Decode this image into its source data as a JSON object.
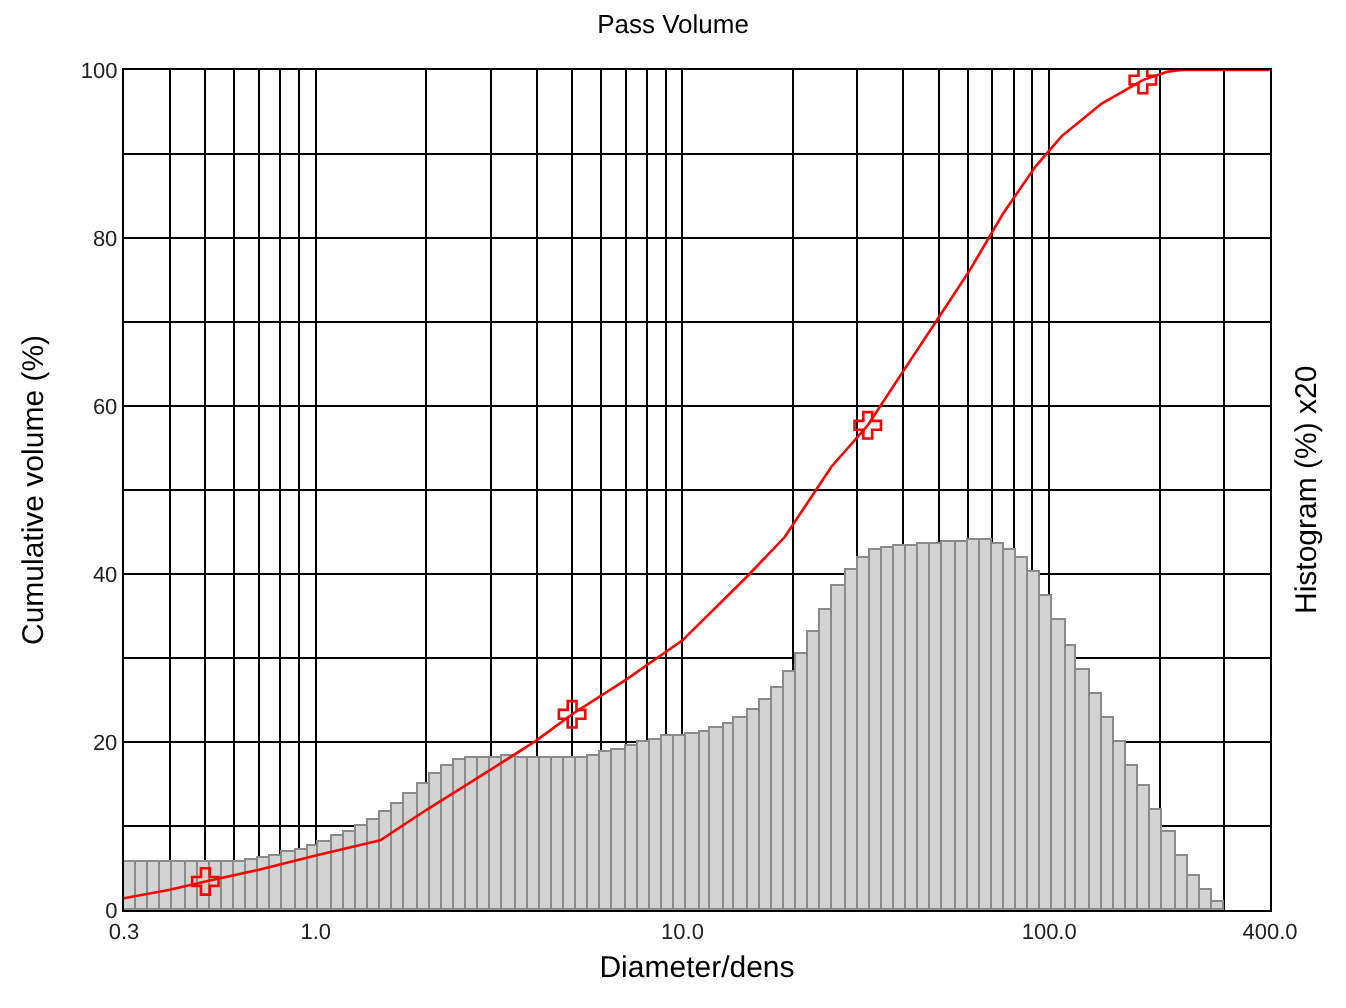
{
  "chart_data": {
    "type": "histogram",
    "title": "Pass Volume",
    "xlabel": "Diameter/dens",
    "ylabel": "Cumulative volume (%)",
    "y2label": "Histogram (%) x20",
    "log": "x",
    "grid": true,
    "xlim": [
      0.3,
      400
    ],
    "ylim": [
      0,
      100
    ],
    "xticks": [
      0.3,
      {
        "value": 0.4,
        "label": null
      },
      {
        "value": 0.5,
        "label": null
      },
      {
        "value": 0.6,
        "label": null
      },
      {
        "value": 0.7,
        "label": null
      },
      {
        "value": 0.8,
        "label": null
      },
      {
        "value": 0.9,
        "label": null
      },
      {
        "value": 1,
        "label": "1.0"
      },
      {
        "value": 2,
        "label": null
      },
      {
        "value": 3,
        "label": null
      },
      {
        "value": 4,
        "label": null
      },
      {
        "value": 5,
        "label": null
      },
      {
        "value": 6,
        "label": null
      },
      {
        "value": 7,
        "label": null
      },
      {
        "value": 8,
        "label": null
      },
      {
        "value": 9,
        "label": null
      },
      {
        "value": 10,
        "label": "10.0"
      },
      {
        "value": 20,
        "label": null
      },
      {
        "value": 30,
        "label": null
      },
      {
        "value": 40,
        "label": null
      },
      {
        "value": 50,
        "label": null
      },
      {
        "value": 60,
        "label": null
      },
      {
        "value": 70,
        "label": null
      },
      {
        "value": 80,
        "label": null
      },
      {
        "value": 90,
        "label": null
      },
      {
        "value": 100,
        "label": "100.0"
      },
      {
        "value": 200,
        "label": null
      },
      {
        "value": 300,
        "label": null
      },
      {
        "value": 400,
        "label": "400.0"
      }
    ],
    "yticks": [
      0,
      {
        "value": 10,
        "label": null
      },
      20,
      {
        "value": 30,
        "label": null
      },
      40,
      {
        "value": 50,
        "label": null
      },
      60,
      {
        "value": 70,
        "label": null
      },
      80,
      {
        "value": 90,
        "label": null
      },
      100
    ],
    "series": [
      {
        "type": "histogram",
        "color": "#d3d3d3",
        "bins": [
          0.3,
          0.324,
          0.35,
          0.378,
          0.408,
          0.44,
          0.475,
          0.513,
          0.554,
          0.599,
          0.646,
          0.698,
          0.754,
          0.814,
          0.879,
          0.949,
          1.02,
          1.11,
          1.19,
          1.29,
          1.39,
          1.5,
          1.62,
          1.75,
          1.89,
          2.04,
          2.21,
          2.38,
          2.57,
          2.78,
          3,
          3.24,
          3.5,
          3.78,
          4.08,
          4.4,
          4.75,
          5.13,
          5.54,
          5.99,
          6.46,
          6.98,
          7.54,
          8.14,
          8.79,
          9.49,
          10.2,
          11.1,
          11.9,
          12.9,
          13.9,
          15,
          16.2,
          17.5,
          18.9,
          20.4,
          22.1,
          23.8,
          25.7,
          27.8,
          30,
          32.4,
          35,
          37.8,
          40.8,
          44,
          47.5,
          51.3,
          55.4,
          59.9,
          64.6,
          69.8,
          75.4,
          81.4,
          87.9,
          94.9,
          102,
          111,
          119,
          129,
          139,
          150,
          162,
          175,
          189,
          204,
          221,
          238,
          257,
          278,
          300
        ],
        "values": [
          5.7,
          5.7,
          5.7,
          5.7,
          5.7,
          5.7,
          5.7,
          5.7,
          5.7,
          5.8,
          6.0,
          6.2,
          6.5,
          6.8,
          7.2,
          7.7,
          8.2,
          8.7,
          9.3,
          10.0,
          10.8,
          11.6,
          12.6,
          13.8,
          15.0,
          16.3,
          17.2,
          17.8,
          18.1,
          18.2,
          18.2,
          18.3,
          18.2,
          18.1,
          18.0,
          18.0,
          18.0,
          18.1,
          18.3,
          18.7,
          19.1,
          19.5,
          19.9,
          20.3,
          20.6,
          20.8,
          21.0,
          21.3,
          21.7,
          22.2,
          22.9,
          23.8,
          25.0,
          26.5,
          28.3,
          30.4,
          33.0,
          35.8,
          38.5,
          40.5,
          42.0,
          42.8,
          43.2,
          43.3,
          43.4,
          43.5,
          43.5,
          43.7,
          43.9,
          44.0,
          44.0,
          43.6,
          42.8,
          41.8,
          40.3,
          37.5,
          34.5,
          31.5,
          28.5,
          25.7,
          22.8,
          20.0,
          17.2,
          14.7,
          12.0,
          9.2,
          6.5,
          4.0,
          2.3,
          1.0
        ]
      },
      {
        "type": "line",
        "color": "#ff0000",
        "marker": "none",
        "x": [
          0.3,
          0.4,
          0.5,
          0.7,
          1,
          1.5,
          2,
          3,
          4,
          5,
          7,
          10,
          15,
          19,
          25.5,
          32,
          40.2,
          49.4,
          60.8,
          74.8,
          91.7,
          108,
          139,
          180,
          210,
          230,
          400
        ],
        "values": [
          1.4,
          2.4,
          3.4,
          4.8,
          6.5,
          8.3,
          11.9,
          16.7,
          20.2,
          23.3,
          27.4,
          32.1,
          39.7,
          44.4,
          52.8,
          57.7,
          64.3,
          70.2,
          76.2,
          82.9,
          88.5,
          92.1,
          96.0,
          98.8,
          99.8,
          100,
          100
        ]
      },
      {
        "type": "scatter",
        "color": "#ff0000",
        "marker": "cross",
        "x": [
          0.5,
          5,
          32,
          180
        ],
        "values": [
          3.4,
          23.3,
          57.7,
          98.8
        ]
      }
    ]
  }
}
